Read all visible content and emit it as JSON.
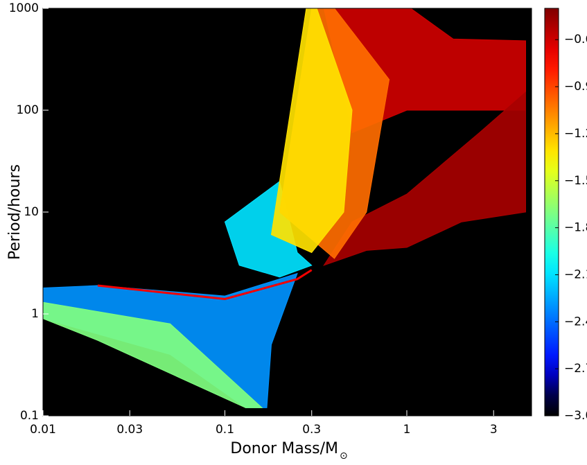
{
  "chart_data": {
    "type": "density",
    "xlabel": "Donor Mass/M",
    "xlabel_sub": "⊙",
    "ylabel": "Period/hours",
    "xscale": "log",
    "yscale": "log",
    "xlim": [
      0.01,
      4.85
    ],
    "ylim": [
      0.1,
      1000
    ],
    "xticks": [
      0.01,
      0.03,
      0.1,
      0.3,
      1,
      3
    ],
    "yticks": [
      0.1,
      1,
      10,
      100,
      1000
    ],
    "background": "#000000",
    "colormap": "jet",
    "clim": [
      -3.0,
      -0.4
    ],
    "cticks": [
      {
        "value": -0.6,
        "label": "−0.6"
      },
      {
        "value": -0.9,
        "label": "−0.9"
      },
      {
        "value": -1.2,
        "label": "−1.2"
      },
      {
        "value": -1.5,
        "label": "−1.5"
      },
      {
        "value": -1.8,
        "label": "−1.8"
      },
      {
        "value": -2.1,
        "label": "−2.1"
      },
      {
        "value": -2.4,
        "label": "−2.4"
      },
      {
        "value": -2.7,
        "label": "−2.7"
      },
      {
        "value": -3.0,
        "label": "−3.0"
      }
    ],
    "series": [
      {
        "z": -2.3,
        "x": [
          0.01,
          0.02,
          0.1,
          0.25,
          0.18,
          0.17,
          0.13,
          0.05,
          0.01
        ],
        "values": [
          1.8,
          1.9,
          1.5,
          2.5,
          0.5,
          0.12,
          0.12,
          0.4,
          0.9
        ]
      },
      {
        "z": -1.7,
        "x": [
          0.01,
          0.05,
          0.16,
          0.13,
          0.02,
          0.01
        ],
        "values": [
          1.3,
          0.8,
          0.12,
          0.12,
          0.55,
          0.9
        ]
      },
      {
        "z": -2.1,
        "x": [
          0.1,
          0.2,
          0.25,
          0.3,
          0.2,
          0.12
        ],
        "values": [
          8,
          20,
          4,
          3,
          2.3,
          3
        ]
      },
      {
        "z": -0.6,
        "x": [
          0.35,
          1.05,
          1.8,
          4.5,
          4.5,
          1,
          0.5
        ],
        "values": [
          1000,
          1000,
          500,
          480,
          100,
          100,
          60
        ]
      },
      {
        "z": -0.5,
        "x": [
          0.35,
          0.6,
          1,
          2,
          4.5,
          4.5,
          2.5,
          1,
          0.5
        ],
        "values": [
          3,
          4.2,
          4.5,
          8,
          10,
          150,
          60,
          15,
          8
        ]
      },
      {
        "z": -1.0,
        "x": [
          0.2,
          0.3,
          0.4,
          0.8,
          0.6,
          0.4
        ],
        "values": [
          10,
          1000,
          1000,
          200,
          10,
          3.5
        ]
      },
      {
        "z": -1.3,
        "x": [
          0.18,
          0.28,
          0.32,
          0.5,
          0.45,
          0.3
        ],
        "values": [
          6,
          1000,
          1000,
          100,
          10,
          4
        ]
      },
      {
        "z": -0.7,
        "x": [
          0.02,
          0.1,
          0.25,
          0.3
        ],
        "values": [
          1.9,
          1.4,
          2.2,
          2.7
        ],
        "line": true
      }
    ]
  }
}
